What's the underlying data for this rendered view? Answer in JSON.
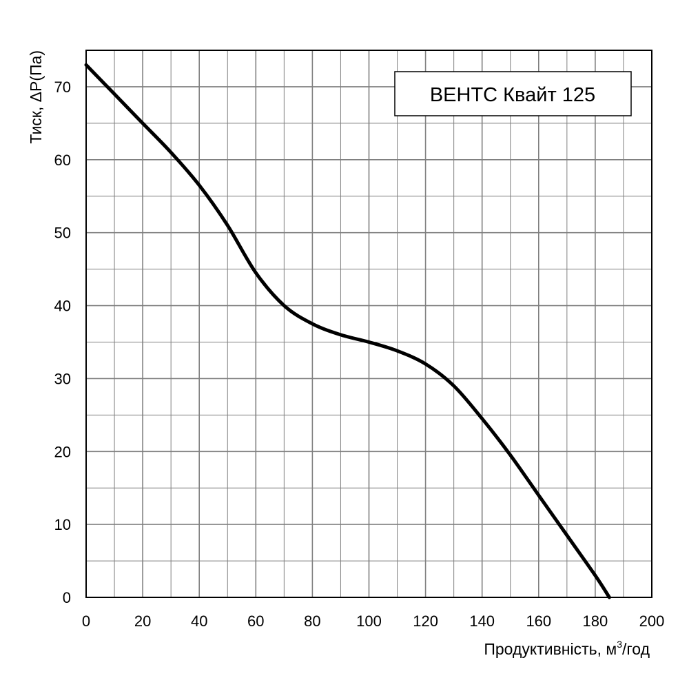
{
  "chart_data": {
    "type": "line",
    "title": "ВЕНТС Квайт 125",
    "xlabel": "Продуктивність, м",
    "xlabel_sup": "3",
    "xlabel_suffix": "/год",
    "ylabel": "Тиск, ΔP(Па)",
    "xlim": [
      0,
      200
    ],
    "ylim": [
      0,
      75
    ],
    "x_major_ticks": [
      0,
      20,
      40,
      60,
      80,
      100,
      120,
      140,
      160,
      180,
      200
    ],
    "y_major_ticks": [
      0,
      10,
      20,
      30,
      40,
      50,
      60,
      70
    ],
    "x_minor_step": 10,
    "y_minor_step": 5,
    "grid": true,
    "legend_position": "top-right",
    "series": [
      {
        "name": "ВЕНТС Квайт 125",
        "x": [
          0,
          10,
          20,
          30,
          40,
          50,
          60,
          70,
          80,
          90,
          100,
          110,
          120,
          130,
          140,
          150,
          160,
          170,
          180,
          185
        ],
        "y": [
          73,
          69,
          65,
          61,
          56.5,
          51,
          44.5,
          40,
          37.5,
          36,
          35,
          33.8,
          32,
          29,
          24.5,
          19.5,
          14,
          8.5,
          3,
          0
        ]
      }
    ]
  },
  "colors": {
    "line": "#000000",
    "grid": "#7f7f7f",
    "frame": "#000000"
  }
}
